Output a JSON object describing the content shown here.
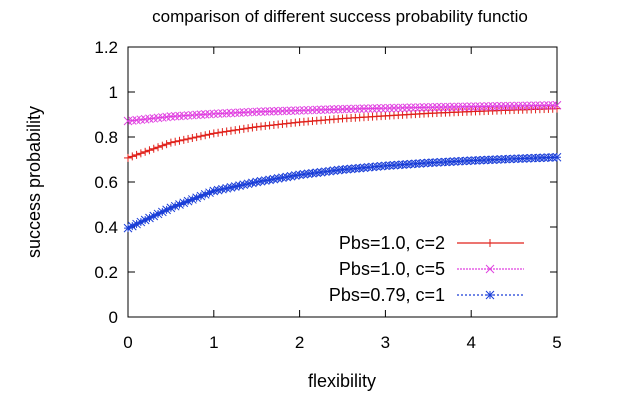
{
  "chart_data": {
    "type": "line",
    "title": "comparison of different success probability functio",
    "xlabel": "flexibility",
    "ylabel": "success probability",
    "xlim": [
      0,
      5
    ],
    "ylim": [
      0,
      1.2
    ],
    "x_ticks": [
      "0",
      "1",
      "2",
      "3",
      "4",
      "5"
    ],
    "y_ticks": [
      "0",
      "0.2",
      "0.4",
      "0.6",
      "0.8",
      "1",
      "1.2"
    ],
    "legend_position": "bottom-right",
    "grid": false,
    "series": [
      {
        "name": "Pbs=1.0, c=2",
        "color": "#e0201a",
        "marker": "plus",
        "x": [
          0,
          0.5,
          1,
          1.5,
          2,
          2.5,
          3,
          3.5,
          4,
          4.5,
          5
        ],
        "y": [
          0.707,
          0.775,
          0.816,
          0.845,
          0.866,
          0.882,
          0.894,
          0.905,
          0.913,
          0.92,
          0.926
        ]
      },
      {
        "name": "Pbs=1.0, c=5",
        "color": "#e040e0",
        "marker": "cross",
        "x": [
          0,
          0.5,
          1,
          1.5,
          2,
          2.5,
          3,
          3.5,
          4,
          4.5,
          5
        ],
        "y": [
          0.871,
          0.891,
          0.903,
          0.912,
          0.918,
          0.924,
          0.928,
          0.932,
          0.935,
          0.938,
          0.941
        ]
      },
      {
        "name": "Pbs=0.79, c=1",
        "color": "#1a3ed8",
        "marker": "star",
        "x": [
          0,
          0.5,
          1,
          1.5,
          2,
          2.5,
          3,
          3.5,
          4,
          4.5,
          5
        ],
        "y": [
          0.395,
          0.485,
          0.56,
          0.6,
          0.632,
          0.655,
          0.672,
          0.685,
          0.695,
          0.703,
          0.71
        ]
      }
    ]
  }
}
